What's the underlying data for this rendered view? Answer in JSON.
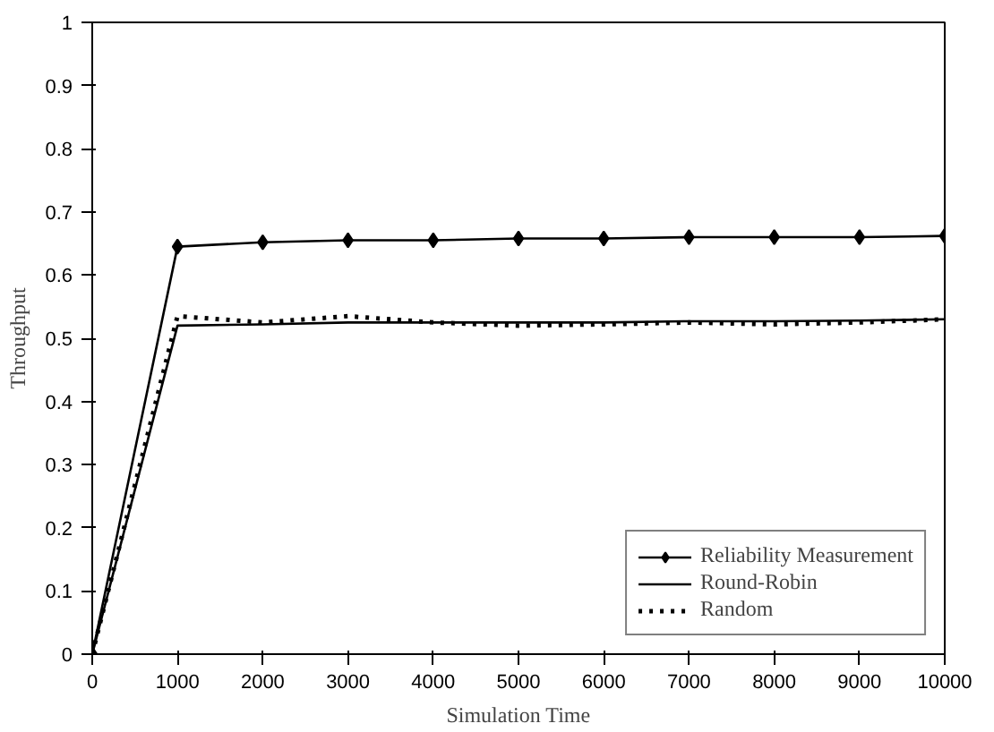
{
  "chart_data": {
    "type": "line",
    "xlabel": "Simulation Time",
    "ylabel": "Throughput",
    "x": [
      0,
      1000,
      2000,
      3000,
      4000,
      5000,
      6000,
      7000,
      8000,
      9000,
      10000
    ],
    "series": [
      {
        "name": "Reliability Measurement",
        "color": "#000000",
        "marker": "diamond",
        "line_style": "solid",
        "values": [
          0,
          0.645,
          0.652,
          0.655,
          0.655,
          0.658,
          0.658,
          0.66,
          0.66,
          0.66,
          0.662
        ]
      },
      {
        "name": "Round-Robin",
        "color": "#000000",
        "marker": "none",
        "line_style": "solid",
        "values": [
          0,
          0.52,
          0.522,
          0.525,
          0.525,
          0.525,
          0.525,
          0.527,
          0.527,
          0.528,
          0.53
        ]
      },
      {
        "name": "Random",
        "color": "#000000",
        "marker": "none",
        "line_style": "dotted",
        "values": [
          0,
          0.535,
          0.525,
          0.535,
          0.525,
          0.52,
          0.522,
          0.525,
          0.522,
          0.525,
          0.53
        ]
      }
    ],
    "xlim": [
      0,
      10000
    ],
    "xticks": [
      0,
      1000,
      2000,
      3000,
      4000,
      5000,
      6000,
      7000,
      8000,
      9000,
      10000
    ],
    "ylim": [
      0,
      1
    ],
    "yticks": [
      0,
      0.1,
      0.2,
      0.3,
      0.4,
      0.5,
      0.6,
      0.7,
      0.8,
      0.9,
      1
    ],
    "grid": false,
    "legend": "bottom right"
  }
}
